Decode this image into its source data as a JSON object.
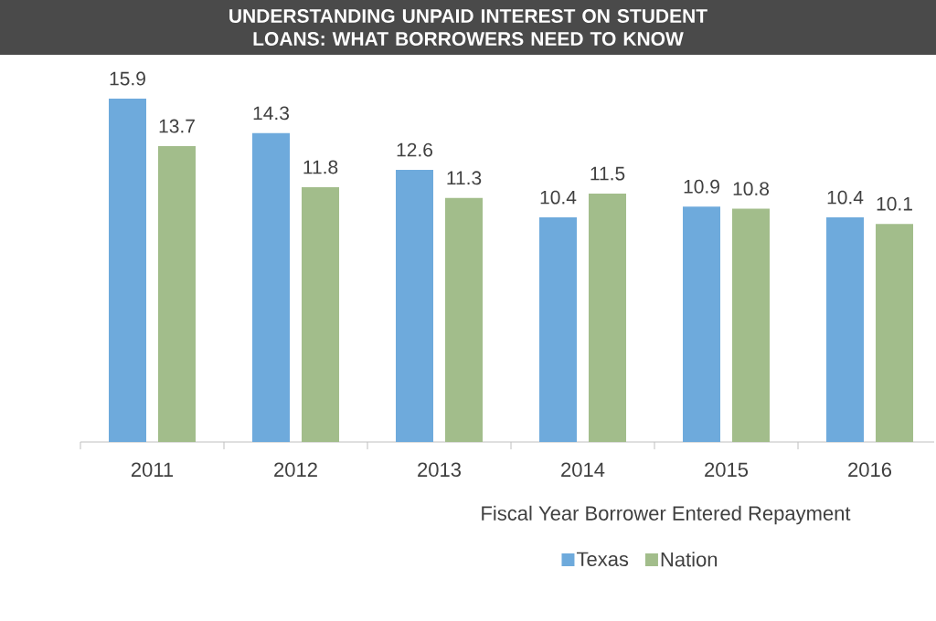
{
  "chart_data": {
    "type": "bar",
    "title": "UNDERSTANDING UNPAID INTEREST ON STUDENT LOANS: WHAT BORROWERS NEED TO KNOW",
    "xlabel": "Fiscal Year Borrower Entered Repayment",
    "categories": [
      "2011",
      "2012",
      "2013",
      "2014",
      "2015",
      "2016"
    ],
    "series": [
      {
        "name": "Texas",
        "color": "#6eaadc",
        "values": [
          15.9,
          14.3,
          12.6,
          10.4,
          10.9,
          10.4
        ]
      },
      {
        "name": "Nation",
        "color": "#a2bd8b",
        "values": [
          13.7,
          11.8,
          11.3,
          11.5,
          10.8,
          10.1
        ]
      }
    ],
    "data_labels": true,
    "legend": "bottom"
  }
}
